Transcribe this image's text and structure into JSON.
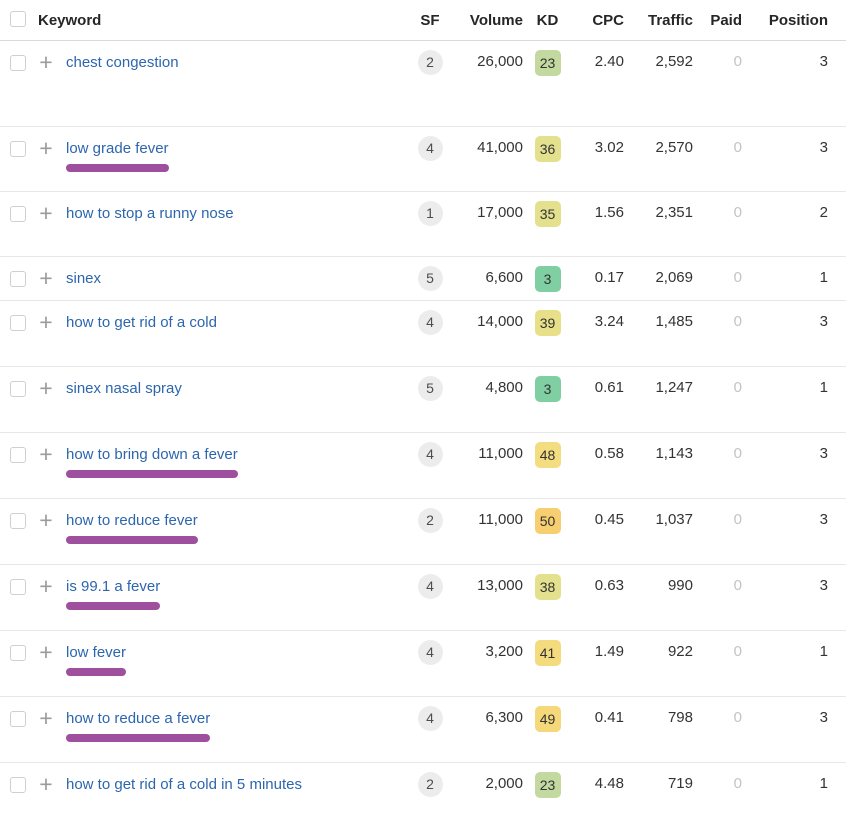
{
  "table": {
    "columns": {
      "keyword": "Keyword",
      "sf": "SF",
      "volume": "Volume",
      "kd": "KD",
      "cpc": "CPC",
      "traffic": "Traffic",
      "paid": "Paid",
      "position": "Position"
    },
    "rows": [
      {
        "keyword": "chest congestion",
        "sf": "2",
        "volume": "26,000",
        "kd": "23",
        "kd_color": "#c3d9a0",
        "cpc": "2.40",
        "traffic": "2,592",
        "paid": "0",
        "position": "3",
        "highlighted": false
      },
      {
        "keyword": "low grade fever",
        "sf": "4",
        "volume": "41,000",
        "kd": "36",
        "kd_color": "#e4e18e",
        "cpc": "3.02",
        "traffic": "2,570",
        "paid": "0",
        "position": "3",
        "highlighted": true
      },
      {
        "keyword": "how to stop a runny nose",
        "sf": "1",
        "volume": "17,000",
        "kd": "35",
        "kd_color": "#e4e18e",
        "cpc": "1.56",
        "traffic": "2,351",
        "paid": "0",
        "position": "2",
        "highlighted": false
      },
      {
        "keyword": "sinex",
        "sf": "5",
        "volume": "6,600",
        "kd": "3",
        "kd_color": "#80cfa3",
        "cpc": "0.17",
        "traffic": "2,069",
        "paid": "0",
        "position": "1",
        "highlighted": false
      },
      {
        "keyword": "how to get rid of a cold",
        "sf": "4",
        "volume": "14,000",
        "kd": "39",
        "kd_color": "#e7e088",
        "cpc": "3.24",
        "traffic": "1,485",
        "paid": "0",
        "position": "3",
        "highlighted": false
      },
      {
        "keyword": "sinex nasal spray",
        "sf": "5",
        "volume": "4,800",
        "kd": "3",
        "kd_color": "#80cfa3",
        "cpc": "0.61",
        "traffic": "1,247",
        "paid": "0",
        "position": "1",
        "highlighted": false
      },
      {
        "keyword": "how to bring down a fever",
        "sf": "4",
        "volume": "11,000",
        "kd": "48",
        "kd_color": "#f4dc80",
        "cpc": "0.58",
        "traffic": "1,143",
        "paid": "0",
        "position": "3",
        "highlighted": true
      },
      {
        "keyword": "how to reduce fever",
        "sf": "2",
        "volume": "11,000",
        "kd": "50",
        "kd_color": "#f7cf70",
        "cpc": "0.45",
        "traffic": "1,037",
        "paid": "0",
        "position": "3",
        "highlighted": true
      },
      {
        "keyword": "is 99.1 a fever",
        "sf": "4",
        "volume": "13,000",
        "kd": "38",
        "kd_color": "#e4e18e",
        "cpc": "0.63",
        "traffic": "990",
        "paid": "0",
        "position": "3",
        "highlighted": true
      },
      {
        "keyword": "low fever",
        "sf": "4",
        "volume": "3,200",
        "kd": "41",
        "kd_color": "#f4db7e",
        "cpc": "1.49",
        "traffic": "922",
        "paid": "0",
        "position": "1",
        "highlighted": true
      },
      {
        "keyword": "how to reduce a fever",
        "sf": "4",
        "volume": "6,300",
        "kd": "49",
        "kd_color": "#f4d87a",
        "cpc": "0.41",
        "traffic": "798",
        "paid": "0",
        "position": "3",
        "highlighted": true
      },
      {
        "keyword": "how to get rid of a cold in 5 minutes",
        "sf": "2",
        "volume": "2,000",
        "kd": "23",
        "kd_color": "#c3d9a0",
        "cpc": "4.48",
        "traffic": "719",
        "paid": "0",
        "position": "1",
        "highlighted": false
      }
    ]
  },
  "colors": {
    "link": "#2c66ae",
    "highlight_bar": "#9e4f9e",
    "sf_badge_bg": "#ececec",
    "paid_muted": "#c3c3c3"
  }
}
